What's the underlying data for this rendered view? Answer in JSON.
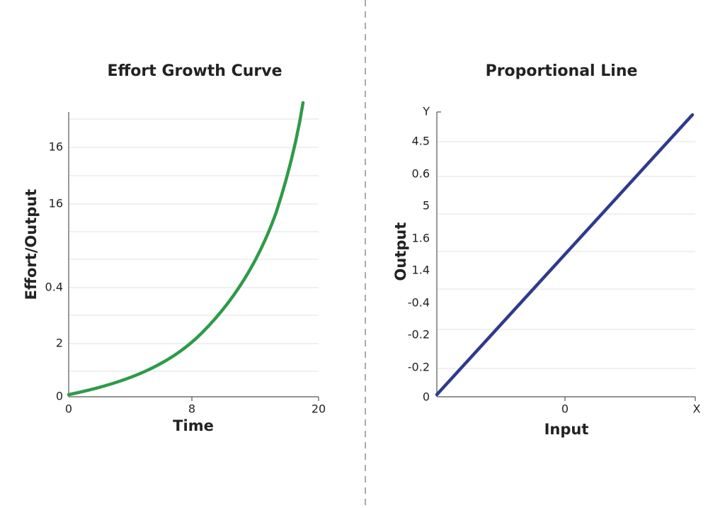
{
  "left": {
    "title": "Effort Growth Curve",
    "x_label": "Time",
    "y_label": "Effort/Output",
    "y_ticks": [
      "16",
      "16",
      "0.4",
      "2",
      "0"
    ],
    "x_ticks": [
      "0",
      "8",
      "20"
    ]
  },
  "right": {
    "title": "Proportional Line",
    "x_label": "Input",
    "y_label": "Output",
    "y_ticks": [
      "Y",
      "4.5",
      "0.6",
      "5",
      "1.6",
      "1.4",
      "-0.4",
      "-0.2",
      "-0.2",
      "0"
    ],
    "x_ticks": [
      "0",
      "X"
    ]
  }
}
